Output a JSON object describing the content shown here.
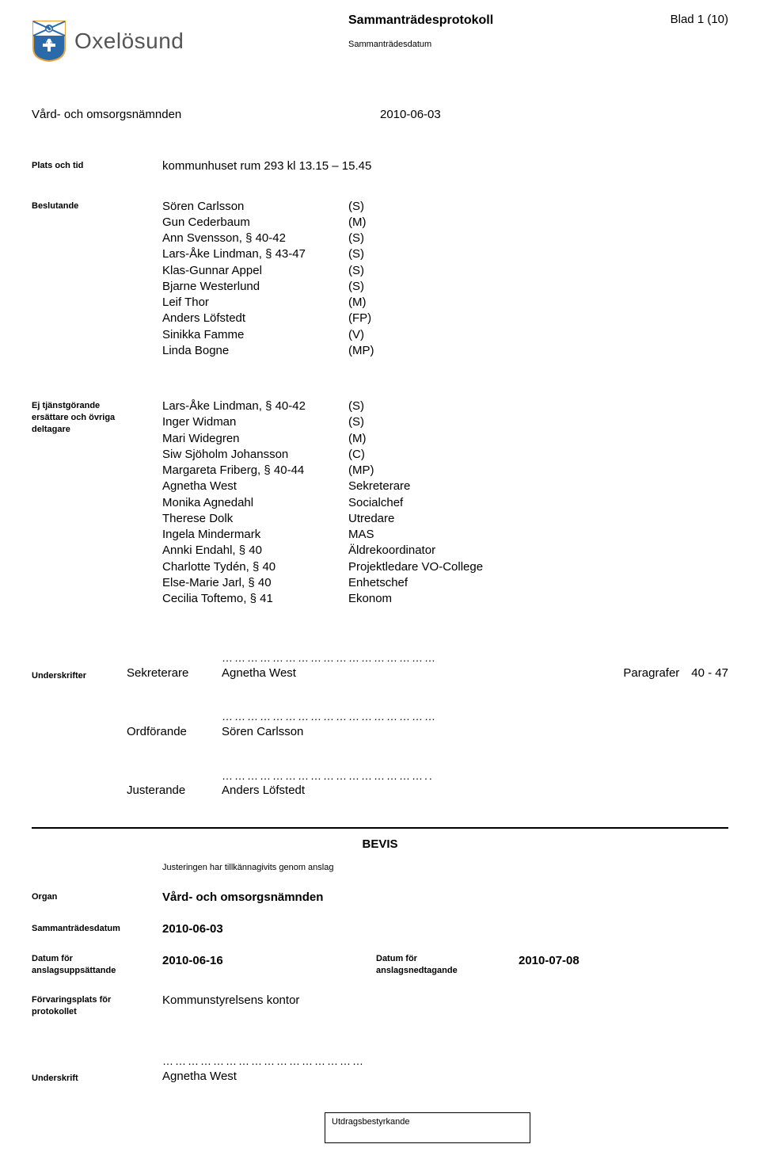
{
  "colors": {
    "shield_blue": "#2b6aa8",
    "shield_border": "#e8a33c",
    "text_gray": "#555555",
    "black": "#000000",
    "white": "#ffffff"
  },
  "header": {
    "org_name": "Oxelösund",
    "doc_title": "Sammanträdesprotokoll",
    "page_label": "Blad 1 (10)",
    "date_label": "Sammanträdesdatum"
  },
  "committee": {
    "name": "Vård- och omsorgsnämnden",
    "date": "2010-06-03"
  },
  "plats": {
    "label": "Plats och tid",
    "value": "kommunhuset rum 293 kl 13.15 – 15.45"
  },
  "beslutande": {
    "label": "Beslutande",
    "rows": [
      {
        "name": "Sören Carlsson",
        "party": "(S)"
      },
      {
        "name": "Gun Cederbaum",
        "party": "(M)"
      },
      {
        "name": "Ann Svensson, § 40-42",
        "party": "(S)"
      },
      {
        "name": "Lars-Åke Lindman, § 43-47",
        "party": "(S)"
      },
      {
        "name": "Klas-Gunnar Appel",
        "party": "(S)"
      },
      {
        "name": "Bjarne Westerlund",
        "party": "(S)"
      },
      {
        "name": "Leif Thor",
        "party": "(M)"
      },
      {
        "name": "Anders Löfstedt",
        "party": "(FP)"
      },
      {
        "name": "Sinikka Famme",
        "party": "(V)"
      },
      {
        "name": "Linda Bogne",
        "party": "(MP)"
      }
    ]
  },
  "ej": {
    "label": "Ej tjänstgörande\nersättare och övriga\ndeltagare",
    "rows": [
      {
        "name": "Lars-Åke Lindman, § 40-42",
        "role": "(S)"
      },
      {
        "name": "Inger Widman",
        "role": "(S)"
      },
      {
        "name": "Mari Widegren",
        "role": "(M)"
      },
      {
        "name": "Siw Sjöholm Johansson",
        "role": "(C)"
      },
      {
        "name": "Margareta Friberg, § 40-44",
        "role": "(MP)"
      },
      {
        "name": "Agnetha West",
        "role": "Sekreterare"
      },
      {
        "name": "Monika Agnedahl",
        "role": "Socialchef"
      },
      {
        "name": "Therese Dolk",
        "role": "Utredare"
      },
      {
        "name": "Ingela Mindermark",
        "role": "MAS"
      },
      {
        "name": "Annki Endahl, § 40",
        "role": "Äldrekoordinator"
      },
      {
        "name": "Charlotte Tydén, § 40",
        "role": "Projektledare VO-College"
      },
      {
        "name": "Else-Marie Jarl, § 40",
        "role": "Enhetschef"
      },
      {
        "name": "Cecilia Toftemo, § 41",
        "role": "Ekonom"
      }
    ]
  },
  "sig": {
    "underskrifter": "Underskrifter",
    "sekreterare": "Sekreterare",
    "sekreterare_name": "Agnetha West",
    "paragrafer_label": "Paragrafer",
    "paragrafer_val": "40 - 47",
    "ordforande": "Ordförande",
    "ordforande_name": "Sören Carlsson",
    "justerande": "Justerande",
    "justerande_name": "Anders Löfstedt"
  },
  "bevis": {
    "title": "BEVIS",
    "sub": "Justeringen har tillkännagivits genom anslag",
    "organ_label": "Organ",
    "organ_val": "Vård- och omsorgsnämnden",
    "datum_label": "Sammanträdesdatum",
    "datum_val": "2010-06-03",
    "d1_label": "Datum för\nanslagsuppsättande",
    "d1_val": "2010-06-16",
    "d2_label": "Datum för\nanslagsnedtagande",
    "d2_val": "2010-07-08",
    "forv_label": "Förvaringsplats för\nprotokollet",
    "forv_val": "Kommunstyrelsens kontor",
    "underskrift_label": "Underskrift",
    "underskrift_name": "Agnetha West"
  },
  "footer": {
    "label": "Utdragsbestyrkande"
  }
}
